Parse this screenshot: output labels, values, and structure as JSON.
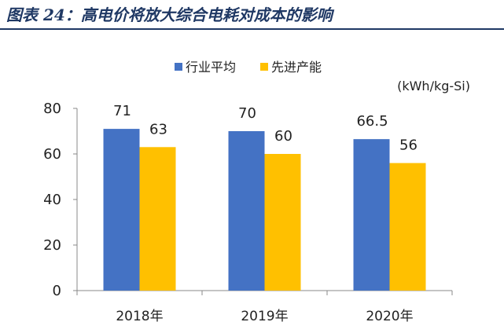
{
  "figure_title": "图表 24：高电价将放大综合电耗对成本的影响",
  "colors": {
    "title": "#1f3864",
    "series_1": "#4472C4",
    "series_2": "#FFC000"
  },
  "chart_data": {
    "type": "bar",
    "categories": [
      "2018年",
      "2019年",
      "2020年"
    ],
    "series": [
      {
        "name": "行业平均",
        "values": [
          71,
          70,
          66.5
        ],
        "labels": [
          "71",
          "70",
          "66.5"
        ]
      },
      {
        "name": "先进产能",
        "values": [
          63,
          60,
          56
        ],
        "labels": [
          "63",
          "60",
          "56"
        ]
      }
    ],
    "unit": "(kWh/kg-Si)",
    "ylim": [
      0,
      80
    ],
    "yticks": [
      0,
      20,
      40,
      60,
      80
    ],
    "grid": false,
    "legend_position": "top-center"
  }
}
